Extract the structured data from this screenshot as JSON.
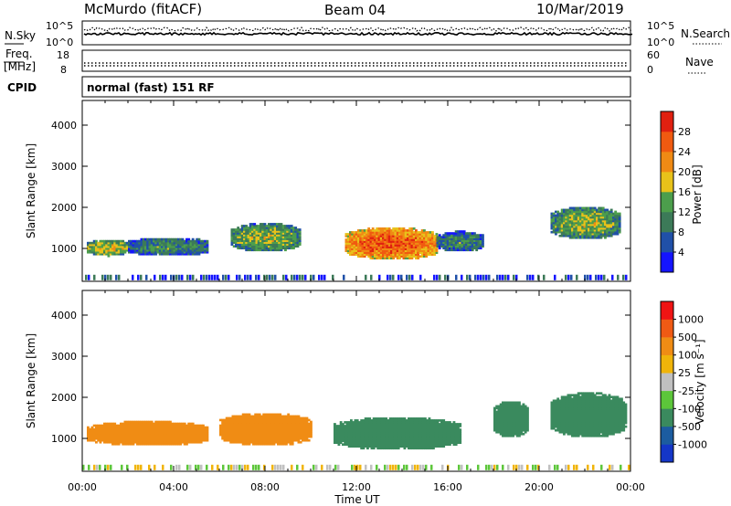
{
  "header": {
    "station": "McMurdo (fitACF)",
    "beam": "Beam 04",
    "date": "10/Mar/2019"
  },
  "noise_panel": {
    "left_label": "N.Sky",
    "right_label": "N.Search",
    "left_ticks": [
      "10^5",
      "10^0"
    ],
    "right_ticks": [
      "10^5",
      "10^0"
    ]
  },
  "freq_panel": {
    "left_label_1": "Freq.",
    "left_label_2": "[MHz]",
    "right_label": "Nave",
    "left_ticks": [
      "18",
      "8"
    ],
    "right_ticks": [
      "60",
      "0"
    ]
  },
  "cpid_panel": {
    "label": "CPID",
    "text": "normal (fast) 151 RF"
  },
  "chart_data": [
    {
      "type": "heatmap",
      "title": "",
      "ylabel": "Slant Range [km]",
      "xlabel": "Time UT",
      "x_ticks": [
        "00:00",
        "04:00",
        "08:00",
        "12:00",
        "16:00",
        "20:00",
        "00:00"
      ],
      "xlim": [
        0,
        24
      ],
      "ylim": [
        200,
        4600
      ],
      "y_ticks": [
        1000,
        2000,
        3000,
        4000
      ],
      "colorbar": {
        "label": "Power [dB]",
        "ticks": [
          "4",
          "8",
          "12",
          "16",
          "20",
          "24",
          "28"
        ],
        "colors": [
          "#1414ff",
          "#2050a8",
          "#3c7a58",
          "#4c9e4c",
          "#e8c21a",
          "#f08a14",
          "#f05a10",
          "#e02010"
        ]
      },
      "regions": [
        {
          "t_start": 0.2,
          "t_end": 2.0,
          "r_min": 800,
          "r_max": 1200,
          "value": 18
        },
        {
          "t_start": 2.0,
          "t_end": 5.5,
          "r_min": 800,
          "r_max": 1250,
          "value": 12
        },
        {
          "t_start": 6.5,
          "t_end": 9.5,
          "r_min": 900,
          "r_max": 1600,
          "value": 16
        },
        {
          "t_start": 11.5,
          "t_end": 15.5,
          "r_min": 700,
          "r_max": 1500,
          "value": 26
        },
        {
          "t_start": 15.5,
          "t_end": 17.5,
          "r_min": 900,
          "r_max": 1400,
          "value": 12
        },
        {
          "t_start": 20.5,
          "t_end": 23.5,
          "r_min": 1200,
          "r_max": 2000,
          "value": 16
        }
      ]
    },
    {
      "type": "heatmap",
      "title": "",
      "ylabel": "Slant Range [km]",
      "xlabel": "Time UT",
      "x_ticks": [
        "00:00",
        "04:00",
        "08:00",
        "12:00",
        "16:00",
        "20:00",
        "00:00"
      ],
      "xlim": [
        0,
        24
      ],
      "ylim": [
        200,
        4600
      ],
      "y_ticks": [
        1000,
        2000,
        3000,
        4000
      ],
      "colorbar": {
        "label": "Velocity [m s⁻¹]",
        "ticks": [
          "1000",
          "500",
          "100",
          "25",
          "-25",
          "-100",
          "-500",
          "-1000"
        ],
        "colors": [
          "#1436c8",
          "#1c5ca0",
          "#3a8a5e",
          "#5cc63a",
          "#c0c0c0",
          "#f0b40a",
          "#f08c14",
          "#f05a14",
          "#f01414"
        ]
      },
      "regions": [
        {
          "t_start": 0.2,
          "t_end": 5.5,
          "r_min": 800,
          "r_max": 1400,
          "value": 300
        },
        {
          "t_start": 6.0,
          "t_end": 10.0,
          "r_min": 800,
          "r_max": 1600,
          "value": 200
        },
        {
          "t_start": 11.0,
          "t_end": 16.5,
          "r_min": 700,
          "r_max": 1500,
          "value": -300
        },
        {
          "t_start": 18.0,
          "t_end": 19.5,
          "r_min": 1000,
          "r_max": 1900,
          "value": -200
        },
        {
          "t_start": 20.5,
          "t_end": 23.8,
          "r_min": 1000,
          "r_max": 2100,
          "value": -300
        }
      ]
    }
  ],
  "x_axis": {
    "label": "Time UT",
    "ticks": [
      "00:00",
      "04:00",
      "08:00",
      "12:00",
      "16:00",
      "20:00",
      "00:00"
    ]
  }
}
